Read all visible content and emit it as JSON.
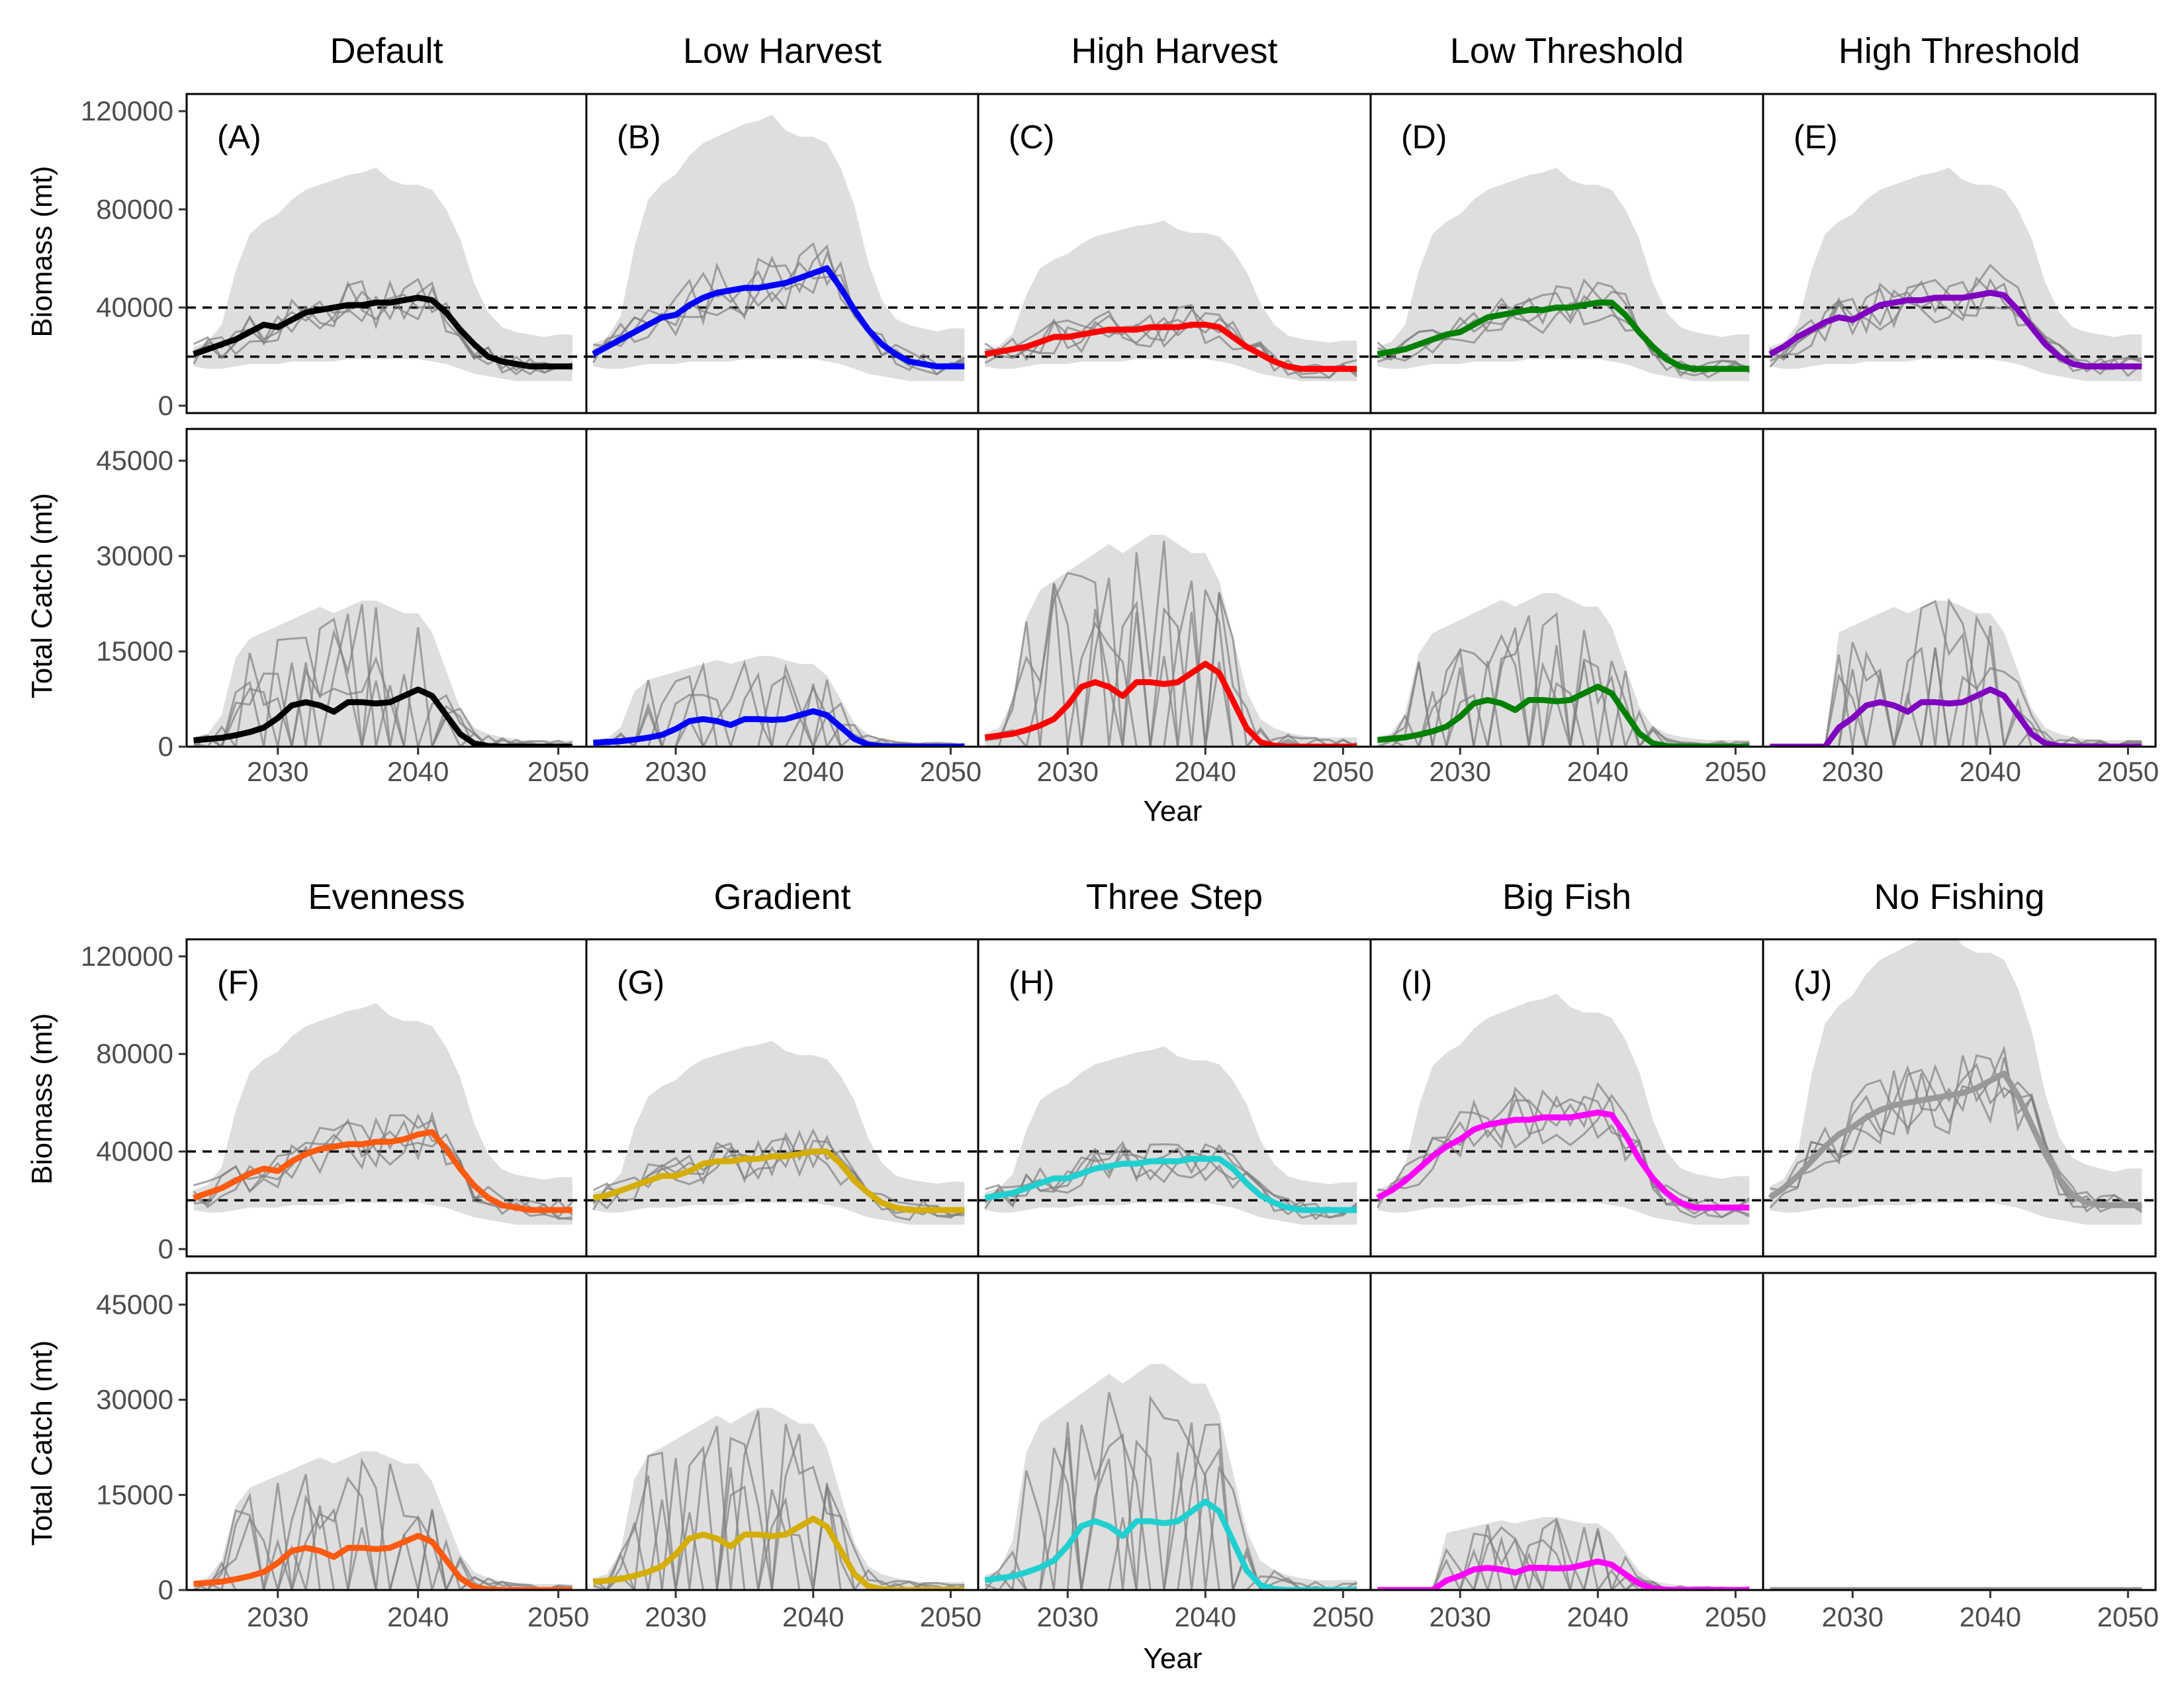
{
  "figure": {
    "x_axis_title": "Year",
    "biomass_axis_title": "Biomass (mt)",
    "catch_axis_title": "Total Catch (mt)"
  },
  "chart_data": {
    "type": "line",
    "x_ticks": [
      2030,
      2040,
      2050
    ],
    "x_range": [
      2023.5,
      2052
    ],
    "biomass": {
      "ylabel": "Biomass (mt)",
      "ylim": [
        -3000,
        127000
      ],
      "ticks": [
        0,
        40000,
        80000,
        120000
      ],
      "reference_lines": [
        20000,
        40000
      ]
    },
    "catch": {
      "ylabel": "Total Catch (mt)",
      "ylim": [
        0,
        50000
      ],
      "ticks": [
        0,
        15000,
        30000,
        45000
      ]
    },
    "xlabel": "Year",
    "panels": [
      {
        "label": "(A)",
        "title": "Default",
        "color": "#000000",
        "band_scale": 1.0,
        "catch_scale": 1.0,
        "catch_start": 2024
      },
      {
        "label": "(B)",
        "title": "Low Harvest",
        "color": "#0000ff",
        "band_scale": 1.28,
        "catch_scale": 0.62,
        "catch_start": 2024
      },
      {
        "label": "(C)",
        "title": "High Harvest",
        "color": "#ff0000",
        "band_scale": 0.72,
        "catch_scale": 1.45,
        "catch_start": 2024
      },
      {
        "label": "(D)",
        "title": "Low Threshold",
        "color": "#008000",
        "band_scale": 1.0,
        "catch_scale": 1.05,
        "catch_start": 2024
      },
      {
        "label": "(E)",
        "title": "High Threshold",
        "color": "#8000c0",
        "band_scale": 1.0,
        "catch_scale": 1.0,
        "catch_start": 2029
      },
      {
        "label": "(F)",
        "title": "Evenness",
        "color": "#ff5a10",
        "band_scale": 1.05,
        "catch_scale": 0.95,
        "catch_start": 2024
      },
      {
        "label": "(G)",
        "title": "Gradient",
        "color": "#d4ae00",
        "band_scale": 0.85,
        "catch_scale": 1.25,
        "catch_start": 2024
      },
      {
        "label": "(H)",
        "title": "Three Step",
        "color": "#20d0d0",
        "band_scale": 0.82,
        "catch_scale": 1.55,
        "catch_start": 2024
      },
      {
        "label": "(I)",
        "title": "Big Fish",
        "color": "#ff00ff",
        "band_scale": 1.1,
        "catch_scale": 0.5,
        "catch_start": 2029
      },
      {
        "label": "(J)",
        "title": "No Fishing",
        "color": "#999999",
        "band_scale": 1.45,
        "catch_scale": 0,
        "catch_start": 2099
      }
    ],
    "years": [
      2024,
      2025,
      2026,
      2027,
      2028,
      2029,
      2030,
      2031,
      2032,
      2033,
      2034,
      2035,
      2036,
      2037,
      2038,
      2039,
      2040,
      2041,
      2042,
      2043,
      2044,
      2045,
      2046,
      2047,
      2048,
      2049,
      2050,
      2051
    ],
    "biomass_median": {
      "Default": [
        21000,
        23000,
        25000,
        27000,
        30000,
        33000,
        32000,
        35000,
        38000,
        39000,
        40000,
        41000,
        41000,
        42000,
        42000,
        43000,
        44000,
        43000,
        38000,
        31000,
        25000,
        20000,
        18000,
        17000,
        16000,
        16000,
        16000,
        16000
      ],
      "Low Harvest": [
        21000,
        24000,
        27000,
        30000,
        33000,
        36000,
        37000,
        41000,
        44000,
        46000,
        47000,
        48000,
        48000,
        49000,
        50000,
        52000,
        54000,
        56000,
        48000,
        39000,
        31000,
        25000,
        21000,
        18000,
        17000,
        16000,
        16000,
        16000
      ],
      "High Harvest": [
        21000,
        22000,
        23000,
        24000,
        26000,
        28000,
        28000,
        29000,
        30000,
        31000,
        31000,
        31000,
        32000,
        32000,
        32000,
        33000,
        33000,
        32000,
        28000,
        24000,
        21000,
        18000,
        16000,
        15000,
        15000,
        15000,
        15000,
        15000
      ],
      "Low Threshold": [
        21000,
        22000,
        23000,
        25000,
        27000,
        29000,
        30000,
        33000,
        36000,
        37000,
        38000,
        39000,
        39000,
        40000,
        40000,
        41000,
        42000,
        42000,
        37000,
        30000,
        24000,
        19000,
        16000,
        15000,
        15000,
        15000,
        15000,
        15000
      ],
      "High Threshold": [
        21000,
        24000,
        28000,
        31000,
        34000,
        36000,
        35000,
        38000,
        41000,
        42000,
        43000,
        43000,
        44000,
        44000,
        44000,
        45000,
        46000,
        45000,
        39000,
        32000,
        25000,
        20000,
        17000,
        16000,
        16000,
        16000,
        16000,
        16000
      ],
      "Evenness": [
        21000,
        23000,
        25000,
        28000,
        31000,
        33000,
        32000,
        36000,
        39000,
        41000,
        42000,
        43000,
        43000,
        44000,
        44000,
        45000,
        47000,
        48000,
        41000,
        33000,
        26000,
        21000,
        18000,
        17000,
        16000,
        16000,
        16000,
        16000
      ],
      "Gradient": [
        21000,
        22000,
        24000,
        26000,
        28000,
        30000,
        30000,
        32000,
        35000,
        36000,
        36000,
        37000,
        37000,
        38000,
        38000,
        39000,
        40000,
        40000,
        35000,
        28000,
        23000,
        19000,
        17000,
        16000,
        16000,
        16000,
        16000,
        16000
      ],
      "Three Step": [
        21000,
        22000,
        23000,
        25000,
        27000,
        29000,
        29000,
        31000,
        33000,
        34000,
        35000,
        35000,
        36000,
        36000,
        36000,
        37000,
        37000,
        37000,
        33000,
        27000,
        22000,
        19000,
        17000,
        16000,
        16000,
        16000,
        16000,
        16000
      ],
      "Big Fish": [
        21000,
        24000,
        28000,
        33000,
        38000,
        42000,
        45000,
        49000,
        51000,
        52000,
        53000,
        53000,
        54000,
        54000,
        54000,
        55000,
        56000,
        55000,
        47000,
        37000,
        29000,
        23000,
        19000,
        17000,
        17000,
        17000,
        17000,
        17000
      ],
      "No Fishing": [
        21000,
        25000,
        30000,
        36000,
        42000,
        47000,
        50000,
        54000,
        57000,
        59000,
        60000,
        61000,
        62000,
        63000,
        64000,
        66000,
        69000,
        72000,
        63000,
        51000,
        39000,
        29000,
        22000,
        19000,
        18000,
        18000,
        18000,
        18000
      ]
    },
    "biomass_band_upper": [
      24000,
      26000,
      33000,
      55000,
      70000,
      75000,
      78000,
      84000,
      88000,
      90000,
      92000,
      94000,
      95000,
      97000,
      92000,
      90000,
      90000,
      88000,
      80000,
      68000,
      50000,
      38000,
      32000,
      30000,
      29000,
      28000,
      29000,
      29000
    ],
    "biomass_band_lower": [
      16000,
      15000,
      15000,
      16000,
      17000,
      17000,
      17000,
      18000,
      18000,
      18000,
      18000,
      19000,
      19000,
      19000,
      19000,
      19000,
      19000,
      18000,
      17000,
      15000,
      13000,
      12000,
      11000,
      10000,
      10000,
      10000,
      10000,
      10000
    ],
    "catch_median": [
      1000,
      1200,
      1400,
      1800,
      2300,
      3000,
      4500,
      6500,
      7000,
      6500,
      5500,
      7000,
      7000,
      6800,
      7000,
      8000,
      9000,
      8000,
      5000,
      2000,
      500,
      100,
      0,
      0,
      0,
      0,
      0,
      0
    ],
    "catch_band_upper": [
      1500,
      2000,
      5000,
      14000,
      17000,
      18000,
      19000,
      20000,
      21000,
      22000,
      21000,
      22000,
      23000,
      23000,
      22000,
      21000,
      21000,
      18000,
      12000,
      6000,
      3000,
      2000,
      1500,
      1200,
      1000,
      1000,
      1000,
      1000
    ],
    "catch_band_lower": [
      0,
      0,
      0,
      0,
      0,
      0,
      0,
      0,
      0,
      0,
      0,
      0,
      0,
      0,
      0,
      0,
      0,
      0,
      0,
      0,
      0,
      0,
      0,
      0,
      0,
      0,
      0,
      0
    ]
  }
}
